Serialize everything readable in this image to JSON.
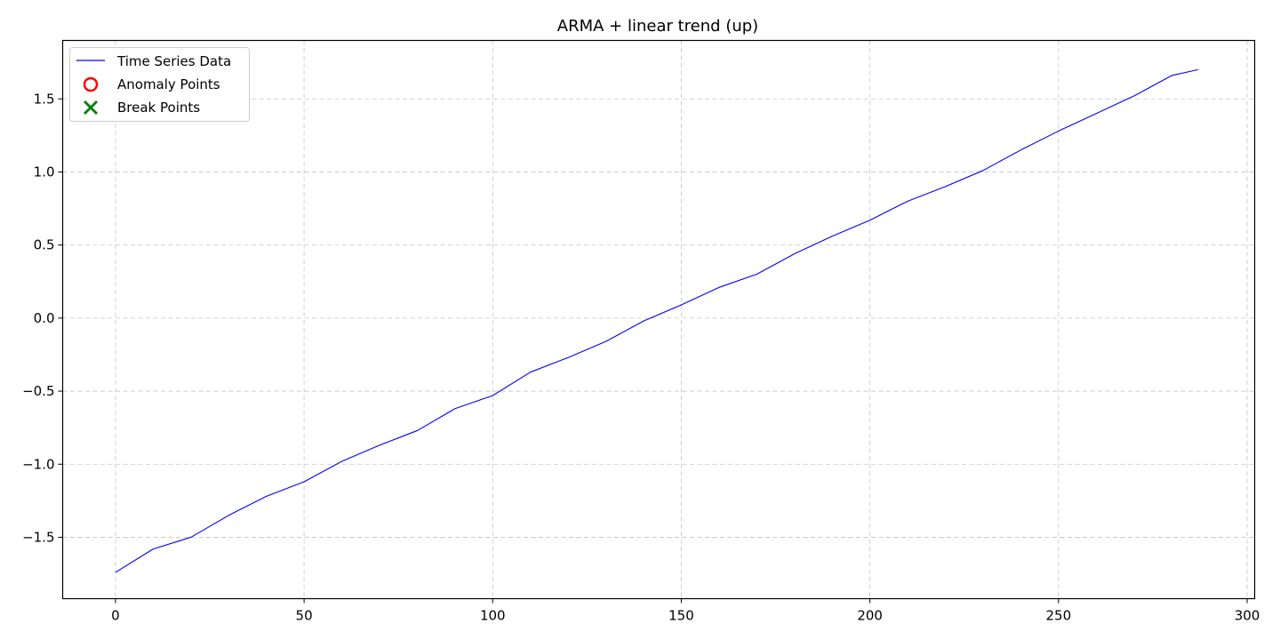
{
  "chart_data": {
    "type": "line",
    "title": "ARMA + linear trend (up)",
    "xlabel": "",
    "ylabel": "",
    "xlim": [
      -14,
      302
    ],
    "ylim": [
      -1.92,
      1.9
    ],
    "x_ticks": [
      0,
      50,
      100,
      150,
      200,
      250,
      300
    ],
    "y_ticks": [
      -1.5,
      -1.0,
      -0.5,
      0.0,
      0.5,
      1.0,
      1.5
    ],
    "x_tick_labels": [
      "0",
      "50",
      "100",
      "150",
      "200",
      "250",
      "300"
    ],
    "y_tick_labels": [
      "−1.5",
      "−1.0",
      "−0.5",
      "0.0",
      "0.5",
      "1.0",
      "1.5"
    ],
    "grid": true,
    "legend_placement": "top-left",
    "legend": [
      {
        "label": "Time Series Data",
        "marker": "line",
        "color": "#0000ff"
      },
      {
        "label": "Anomaly Points",
        "marker": "circle",
        "color": "#ff0000"
      },
      {
        "label": "Break Points",
        "marker": "x",
        "color": "#008000"
      }
    ],
    "series": [
      {
        "name": "Time Series Data",
        "color": "#0000ff",
        "x": [
          0,
          10,
          20,
          30,
          40,
          50,
          60,
          70,
          80,
          90,
          100,
          110,
          120,
          130,
          140,
          150,
          160,
          170,
          180,
          190,
          200,
          210,
          220,
          230,
          240,
          250,
          260,
          270,
          280,
          287
        ],
        "y": [
          -1.74,
          -1.58,
          -1.5,
          -1.35,
          -1.22,
          -1.12,
          -0.98,
          -0.87,
          -0.77,
          -0.62,
          -0.53,
          -0.37,
          -0.27,
          -0.16,
          -0.02,
          0.09,
          0.21,
          0.3,
          0.44,
          0.56,
          0.67,
          0.8,
          0.9,
          1.01,
          1.15,
          1.28,
          1.4,
          1.52,
          1.66,
          1.7
        ]
      }
    ],
    "anomaly_points": [],
    "break_points": []
  }
}
